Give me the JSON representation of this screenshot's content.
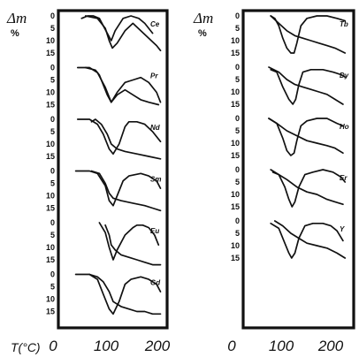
{
  "chart_data": [
    {
      "type": "line",
      "ylabel": "Δm",
      "yunit": "%",
      "xlabel": "T(°C)",
      "xticks": [
        0,
        100,
        200
      ],
      "xlim": [
        0,
        260
      ],
      "yticks": [
        0,
        5,
        10,
        15
      ],
      "ylim": [
        0,
        15
      ],
      "panels": [
        {
          "element": "Ce",
          "series": [
            {
              "x": [
                60,
                90,
                110,
                120,
                128,
                140,
                160,
                180,
                200,
                220,
                240,
                250
              ],
              "y": [
                0,
                1,
                5,
                10,
                13,
                11,
                6,
                3,
                6,
                9,
                12,
                14
              ]
            },
            {
              "x": [
                50,
                65,
                80,
                95,
                105,
                125,
                135,
                155,
                175,
                195,
                210,
                230
              ],
              "y": [
                1,
                0,
                0,
                1,
                4,
                10,
                6,
                1,
                0,
                1,
                3,
                7
              ]
            }
          ]
        },
        {
          "element": "Pr",
          "series": [
            {
              "x": [
                40,
                70,
                90,
                110,
                125,
                140,
                160,
                180,
                200,
                220,
                240,
                250
              ],
              "y": [
                0,
                0,
                2,
                8,
                14,
                10,
                6,
                5,
                4,
                6,
                10,
                14
              ]
            },
            {
              "x": [
                60,
                85,
                95,
                105,
                115,
                125,
                140,
                160,
                180,
                200,
                220,
                245
              ],
              "y": [
                0,
                1,
                3,
                7,
                11,
                14,
                11,
                9,
                11,
                13,
                14,
                15
              ]
            }
          ]
        },
        {
          "element": "Nd",
          "series": [
            {
              "x": [
                40,
                70,
                90,
                105,
                120,
                130,
                145,
                160,
                170,
                190,
                210,
                230,
                250
              ],
              "y": [
                0,
                0,
                2,
                6,
                12,
                14,
                10,
                3,
                1,
                1,
                2,
                5,
                9
              ]
            },
            {
              "x": [
                75,
                85,
                100,
                115,
                125,
                140,
                160,
                190,
                220,
                250
              ],
              "y": [
                1,
                0,
                2,
                6,
                10,
                12,
                13,
                14,
                15,
                16
              ]
            }
          ]
        },
        {
          "element": "Sm",
          "series": [
            {
              "x": [
                35,
                70,
                90,
                110,
                120,
                130,
                140,
                155,
                170,
                200,
                220,
                240,
                250
              ],
              "y": [
                0,
                0,
                1,
                6,
                12,
                14,
                10,
                4,
                2,
                1,
                2,
                4,
                7
              ]
            },
            {
              "x": [
                75,
                95,
                110,
                120,
                130,
                150,
                180,
                210,
                230,
                250
              ],
              "y": [
                0,
                1,
                5,
                9,
                11,
                12,
                13,
                14,
                15,
                16
              ]
            }
          ]
        },
        {
          "element": "Eu",
          "series": [
            {
              "x": [
                95,
                110,
                120,
                130,
                140,
                160,
                180,
                190,
                205,
                220,
                235,
                245
              ],
              "y": [
                0,
                4,
                10,
                15,
                11,
                5,
                2,
                1,
                1,
                2,
                5,
                9
              ]
            },
            {
              "x": [
                110,
                120,
                125,
                135,
                150,
                170,
                190,
                210,
                230,
                250
              ],
              "y": [
                1,
                5,
                9,
                11,
                13,
                14,
                15,
                16,
                17,
                17
              ]
            }
          ]
        },
        {
          "element": "Gd",
          "series": [
            {
              "x": [
                35,
                70,
                90,
                105,
                120,
                130,
                145,
                160,
                175,
                200,
                220,
                240,
                250
              ],
              "y": [
                0,
                0,
                2,
                8,
                14,
                16,
                11,
                4,
                2,
                1,
                2,
                4,
                7
              ]
            },
            {
              "x": [
                70,
                90,
                105,
                120,
                130,
                150,
                170,
                190,
                210,
                230,
                250
              ],
              "y": [
                0,
                1,
                3,
                7,
                11,
                13,
                14,
                15,
                15,
                16,
                16
              ]
            }
          ]
        }
      ]
    },
    {
      "type": "line",
      "ylabel": "Δm",
      "yunit": "%",
      "xticks": [
        0,
        100,
        200
      ],
      "xlim": [
        0,
        260
      ],
      "yticks": [
        0,
        5,
        10,
        15
      ],
      "ylim": [
        0,
        15
      ],
      "panels": [
        {
          "element": "Tb",
          "series": [
            {
              "x": [
                60,
                70,
                80,
                90,
                100,
                110,
                118,
                125,
                135,
                150,
                175,
                200,
                225,
                245
              ],
              "y": [
                0,
                1,
                4,
                9,
                13,
                15,
                15,
                11,
                4,
                1,
                0,
                0,
                1,
                2
              ]
            },
            {
              "x": [
                60,
                80,
                100,
                120,
                140,
                160,
                180,
                200,
                220,
                245
              ],
              "y": [
                0,
                3,
                6,
                8,
                9,
                10,
                11,
                12,
                13,
                15
              ]
            }
          ]
        },
        {
          "element": "Dy",
          "series": [
            {
              "x": [
                60,
                75,
                90,
                105,
                115,
                122,
                130,
                140,
                160,
                190,
                215,
                235,
                245
              ],
              "y": [
                1,
                2,
                8,
                13,
                15,
                13,
                7,
                2,
                1,
                1,
                2,
                3,
                4
              ]
            },
            {
              "x": [
                55,
                80,
                100,
                120,
                140,
                160,
                180,
                200,
                220,
                240
              ],
              "y": [
                0,
                2,
                5,
                7,
                8,
                9,
                10,
                11,
                13,
                15
              ]
            }
          ]
        },
        {
          "element": "Ho",
          "series": [
            {
              "x": [
                55,
                75,
                90,
                100,
                110,
                118,
                125,
                135,
                150,
                175,
                200,
                225,
                240
              ],
              "y": [
                0,
                2,
                8,
                13,
                15,
                14,
                9,
                3,
                1,
                0,
                0,
                2,
                3
              ]
            },
            {
              "x": [
                55,
                75,
                100,
                125,
                150,
                175,
                200,
                220,
                240
              ],
              "y": [
                0,
                2,
                5,
                7,
                9,
                10,
                11,
                12,
                14
              ]
            }
          ]
        },
        {
          "element": "Er",
          "series": [
            {
              "x": [
                65,
                80,
                95,
                105,
                113,
                120,
                130,
                145,
                165,
                190,
                215,
                235,
                245
              ],
              "y": [
                1,
                2,
                7,
                12,
                15,
                13,
                7,
                2,
                1,
                0,
                1,
                3,
                5
              ]
            },
            {
              "x": [
                60,
                80,
                100,
                125,
                150,
                175,
                200,
                220,
                240
              ],
              "y": [
                0,
                2,
                4,
                7,
                9,
                10,
                12,
                13,
                14
              ]
            }
          ]
        },
        {
          "element": "Y",
          "series": [
            {
              "x": [
                60,
                80,
                95,
                105,
                112,
                120,
                130,
                145,
                165,
                190,
                210,
                225,
                240
              ],
              "y": [
                1,
                3,
                9,
                13,
                15,
                13,
                7,
                2,
                1,
                1,
                2,
                4,
                8
              ]
            },
            {
              "x": [
                70,
                90,
                110,
                130,
                150,
                175,
                200,
                225,
                245
              ],
              "y": [
                0,
                2,
                5,
                7,
                9,
                10,
                11,
                13,
                15
              ]
            }
          ]
        }
      ]
    }
  ]
}
